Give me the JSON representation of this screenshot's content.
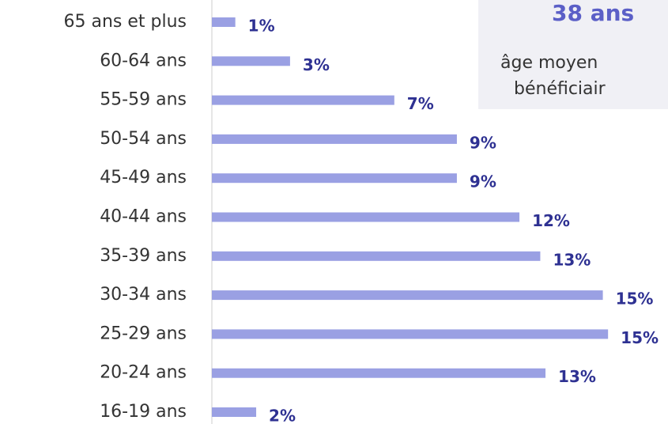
{
  "chart_data": {
    "type": "hbar",
    "categories": [
      "65 ans et plus",
      "60-64 ans",
      "55-59 ans",
      "50-54 ans",
      "45-49 ans",
      "40-44 ans",
      "35-39 ans",
      "30-34 ans",
      "25-29 ans",
      "20-24 ans",
      "16-19 ans"
    ],
    "values": [
      0.9,
      3.0,
      7.0,
      9.4,
      9.4,
      11.8,
      12.6,
      15.0,
      15.2,
      12.8,
      1.7
    ],
    "value_labels": [
      "1%",
      "3%",
      "7%",
      "9%",
      "9%",
      "12%",
      "13%",
      "15%",
      "15%",
      "13%",
      "2%"
    ],
    "color": "#9aa0e3",
    "xlim": [
      0,
      17.5
    ],
    "callout": {
      "headline": "38 ans",
      "lines": [
        "âge moyen",
        "bénéficiair"
      ]
    }
  }
}
